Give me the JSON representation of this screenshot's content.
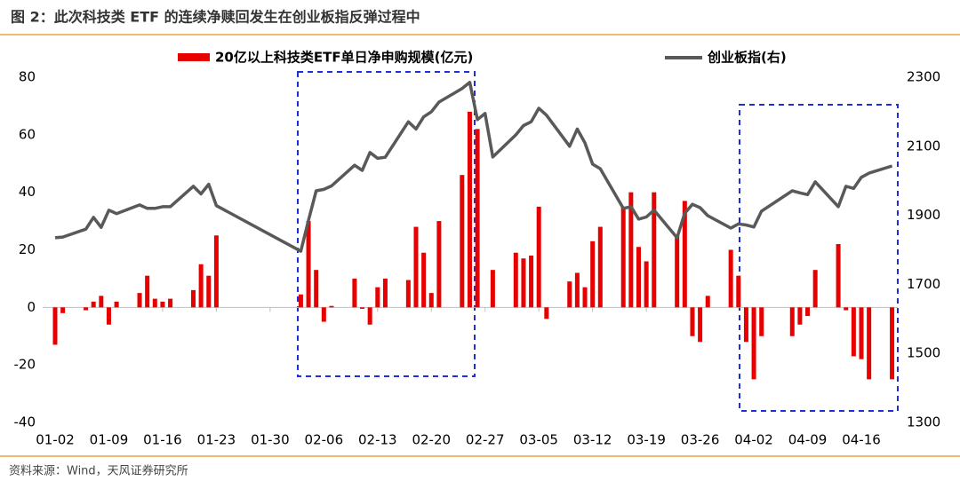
{
  "chart_data": {
    "type": "bar-line",
    "title": "图 2：此次科技类 ETF 的连续净赎回发生在创业板指反弹过程中",
    "source": "资料来源：Wind，天风证券研究所",
    "x": [
      "01-02",
      "01-03",
      "01-06",
      "01-07",
      "01-08",
      "01-09",
      "01-10",
      "01-13",
      "01-14",
      "01-15",
      "01-16",
      "01-17",
      "01-20",
      "01-21",
      "01-22",
      "01-23",
      "02-03",
      "02-04",
      "02-05",
      "02-06",
      "02-07",
      "02-10",
      "02-11",
      "02-12",
      "02-13",
      "02-14",
      "02-17",
      "02-18",
      "02-19",
      "02-20",
      "02-21",
      "02-24",
      "02-25",
      "02-26",
      "02-27",
      "02-28",
      "03-02",
      "03-03",
      "03-04",
      "03-05",
      "03-06",
      "03-09",
      "03-10",
      "03-11",
      "03-12",
      "03-13",
      "03-16",
      "03-17",
      "03-18",
      "03-19",
      "03-20",
      "03-23",
      "03-24",
      "03-25",
      "03-26",
      "03-27",
      "03-30",
      "03-31",
      "04-01",
      "04-02",
      "04-03",
      "04-07",
      "04-08",
      "04-09",
      "04-10",
      "04-13",
      "04-14",
      "04-15",
      "04-16",
      "04-17",
      "04-20"
    ],
    "series": [
      {
        "name": "20亿以上科技类ETF单日净申购规模(亿元)",
        "color": "#e60000",
        "type": "bar",
        "axis": "y",
        "values": [
          -13,
          -2,
          -1,
          2,
          4,
          -6,
          2,
          5,
          11,
          3,
          2,
          3,
          6,
          15,
          11,
          25,
          4.5,
          30,
          13,
          -5,
          0.5,
          10,
          -0.5,
          -6,
          7,
          10,
          9.5,
          28,
          19,
          5,
          30,
          46,
          68,
          62,
          null,
          13,
          19,
          17,
          18,
          35,
          -4,
          9,
          12,
          7,
          23,
          28,
          35,
          40,
          21,
          16,
          40,
          25,
          37,
          -10,
          -12,
          4,
          20,
          11,
          -12,
          -25,
          -10,
          -10,
          -6,
          -3,
          13,
          22,
          -1,
          -17,
          -18,
          -25,
          -25
        ]
      },
      {
        "name": "创业板指(右)",
        "color": "#595959",
        "type": "line",
        "axis": "y2",
        "values": [
          1835,
          1837,
          1860,
          1894,
          1865,
          1915,
          1905,
          1930,
          1920,
          1920,
          1925,
          1925,
          1984,
          1962,
          1990,
          1928,
          1796,
          1886,
          1971,
          1975,
          1985,
          2045,
          2030,
          2082,
          2065,
          2068,
          2171,
          2150,
          2185,
          2200,
          2228,
          2267,
          2285,
          2177,
          2195,
          2069,
          2133,
          2160,
          2171,
          2210,
          2190,
          2100,
          2150,
          2110,
          2048,
          2035,
          1920,
          1925,
          1889,
          1895,
          1915,
          1835,
          1906,
          1932,
          1922,
          1899,
          1863,
          1875,
          1872,
          1866,
          1912,
          1971,
          1965,
          1960,
          1997,
          1925,
          1984,
          1978,
          2010,
          2022,
          2043
        ]
      }
    ],
    "xticks": [
      "01-02",
      "01-09",
      "01-16",
      "01-23",
      "01-30",
      "02-06",
      "02-13",
      "02-20",
      "02-27",
      "03-05",
      "03-12",
      "03-19",
      "03-26",
      "04-02",
      "04-09",
      "04-16"
    ],
    "ylim": [
      -40,
      80
    ],
    "yticks": [
      -40,
      -20,
      0,
      20,
      40,
      60,
      80
    ],
    "y2lim": [
      1300,
      2300
    ],
    "y2ticks": [
      1300,
      1500,
      1700,
      1900,
      2100,
      2300
    ]
  }
}
